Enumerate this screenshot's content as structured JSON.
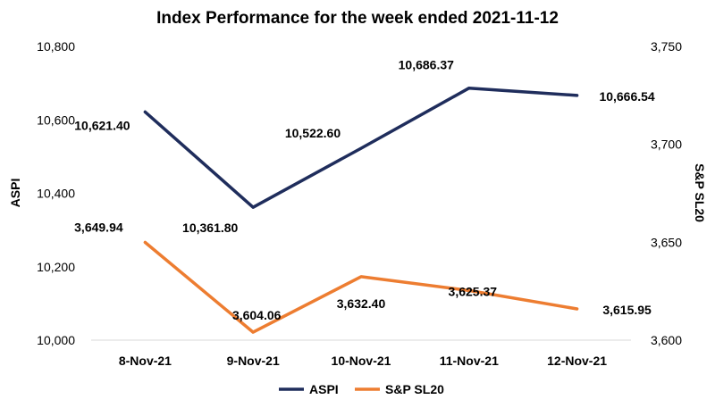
{
  "chart_data": {
    "type": "line",
    "title": "Index Performance for the week ended 2021-11-12",
    "categories": [
      "8-Nov-21",
      "9-Nov-21",
      "10-Nov-21",
      "11-Nov-21",
      "12-Nov-21"
    ],
    "series": [
      {
        "name": "ASPI",
        "axis": "left",
        "color": "#1F2D5C",
        "values": [
          10621.4,
          10361.8,
          10522.6,
          10686.37,
          10666.54
        ],
        "labels": [
          "10,621.40",
          "10,361.80",
          "10,522.60",
          "10,686.37",
          "10,666.54"
        ]
      },
      {
        "name": "S&P SL20",
        "axis": "right",
        "color": "#ED7D31",
        "values": [
          3649.94,
          3604.06,
          3632.4,
          3625.37,
          3615.95
        ],
        "labels": [
          "3,649.94",
          "3,604.06",
          "3,632.40",
          "3,625.37",
          "3,615.95"
        ]
      }
    ],
    "y_left": {
      "label": "ASPI",
      "ylim": [
        10000,
        10800
      ],
      "ticks": [
        10000,
        10200,
        10400,
        10600,
        10800
      ],
      "tick_labels": [
        "10,000",
        "10,200",
        "10,400",
        "10,600",
        "10,800"
      ]
    },
    "y_right": {
      "label": "S&P SL20",
      "ylim": [
        3600,
        3750
      ],
      "ticks": [
        3600,
        3650,
        3700,
        3750
      ],
      "tick_labels": [
        "3,600",
        "3,650",
        "3,700",
        "3,750"
      ]
    },
    "grid": false,
    "legend": "bottom"
  }
}
